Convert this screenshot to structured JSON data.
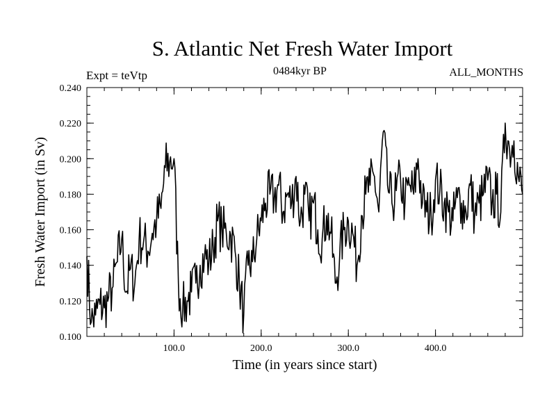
{
  "header": {
    "title": "S. Atlantic Net Fresh Water Import",
    "expt": "Expt = teVtp",
    "epoch": "0484kyr BP",
    "months": "ALL_MONTHS"
  },
  "chart_data": {
    "type": "line",
    "title": "S. Atlantic Net Fresh Water Import",
    "xlabel": "Time (in years since start)",
    "ylabel": "Fresh Water Import (in Sv)",
    "xlim": [
      0,
      500
    ],
    "ylim": [
      0.1,
      0.24
    ],
    "xticks": [
      {
        "value": 100,
        "label": "100.0"
      },
      {
        "value": 200,
        "label": "200.0"
      },
      {
        "value": 300,
        "label": "300.0"
      },
      {
        "value": 400,
        "label": "400.0"
      }
    ],
    "yticks": [
      {
        "value": 0.1,
        "label": "0.100"
      },
      {
        "value": 0.12,
        "label": "0.120"
      },
      {
        "value": 0.14,
        "label": "0.140"
      },
      {
        "value": 0.16,
        "label": "0.160"
      },
      {
        "value": 0.18,
        "label": "0.180"
      },
      {
        "value": 0.2,
        "label": "0.200"
      },
      {
        "value": 0.22,
        "label": "0.220"
      },
      {
        "value": 0.24,
        "label": "0.240"
      }
    ],
    "series": [
      {
        "name": "fresh water import",
        "color": "#000000",
        "x": [
          0,
          5,
          10,
          15,
          20,
          25,
          30,
          35,
          40,
          45,
          50,
          55,
          60,
          65,
          70,
          75,
          80,
          85,
          90,
          95,
          100,
          105,
          110,
          115,
          120,
          125,
          130,
          135,
          140,
          145,
          150,
          155,
          160,
          165,
          170,
          175,
          180,
          185,
          190,
          195,
          200,
          205,
          210,
          215,
          220,
          225,
          230,
          235,
          240,
          245,
          250,
          255,
          260,
          265,
          270,
          275,
          280,
          285,
          290,
          295,
          300,
          305,
          310,
          315,
          320,
          325,
          330,
          335,
          340,
          345,
          350,
          355,
          360,
          365,
          370,
          375,
          380,
          385,
          390,
          395,
          400,
          405,
          410,
          415,
          420,
          425,
          430,
          435,
          440,
          445,
          450,
          455,
          460,
          465,
          470,
          475,
          480,
          485,
          490,
          495,
          500
        ],
        "values": [
          0.145,
          0.108,
          0.112,
          0.118,
          0.116,
          0.122,
          0.128,
          0.142,
          0.155,
          0.125,
          0.138,
          0.13,
          0.155,
          0.153,
          0.148,
          0.158,
          0.165,
          0.172,
          0.195,
          0.198,
          0.2,
          0.13,
          0.115,
          0.12,
          0.125,
          0.13,
          0.14,
          0.145,
          0.142,
          0.15,
          0.165,
          0.16,
          0.158,
          0.157,
          0.148,
          0.13,
          0.112,
          0.14,
          0.142,
          0.155,
          0.165,
          0.175,
          0.18,
          0.178,
          0.185,
          0.17,
          0.18,
          0.175,
          0.19,
          0.165,
          0.18,
          0.165,
          0.175,
          0.16,
          0.155,
          0.168,
          0.158,
          0.13,
          0.145,
          0.16,
          0.165,
          0.158,
          0.14,
          0.168,
          0.18,
          0.185,
          0.19,
          0.17,
          0.215,
          0.185,
          0.175,
          0.182,
          0.188,
          0.175,
          0.185,
          0.18,
          0.2,
          0.175,
          0.17,
          0.168,
          0.188,
          0.182,
          0.175,
          0.17,
          0.165,
          0.178,
          0.175,
          0.17,
          0.185,
          0.168,
          0.175,
          0.18,
          0.188,
          0.175,
          0.18,
          0.17,
          0.22,
          0.205,
          0.21,
          0.19,
          0.18
        ]
      }
    ]
  }
}
